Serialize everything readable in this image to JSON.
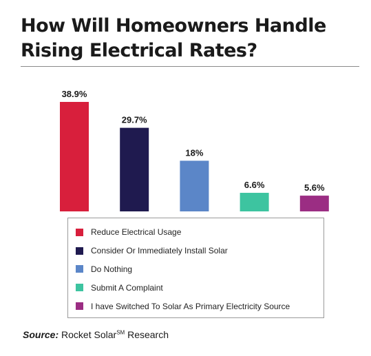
{
  "chart_data": {
    "type": "bar",
    "title": "How Will Homeowners Handle Rising Electrical Rates?",
    "categories": [
      "Reduce Electrical Usage",
      "Consider Or Immediately Install Solar",
      "Do Nothing",
      "Submit A Complaint",
      "I have Switched To Solar As Primary Electricity Source"
    ],
    "values": [
      38.9,
      29.7,
      18,
      6.6,
      5.6
    ],
    "value_labels": [
      "38.9%",
      "29.7%",
      "18%",
      "6.6%",
      "5.6%"
    ],
    "colors": [
      "#d81f3c",
      "#1f1a4f",
      "#5b86c8",
      "#3dc4a0",
      "#9b2d83"
    ],
    "ylim": [
      0,
      38.9
    ],
    "grid": false,
    "legend_placement": "bottom"
  },
  "source": {
    "label": "Source",
    "separator": ":",
    "text": " Rocket Solar",
    "mark": "SM",
    "suffix": " Research"
  }
}
